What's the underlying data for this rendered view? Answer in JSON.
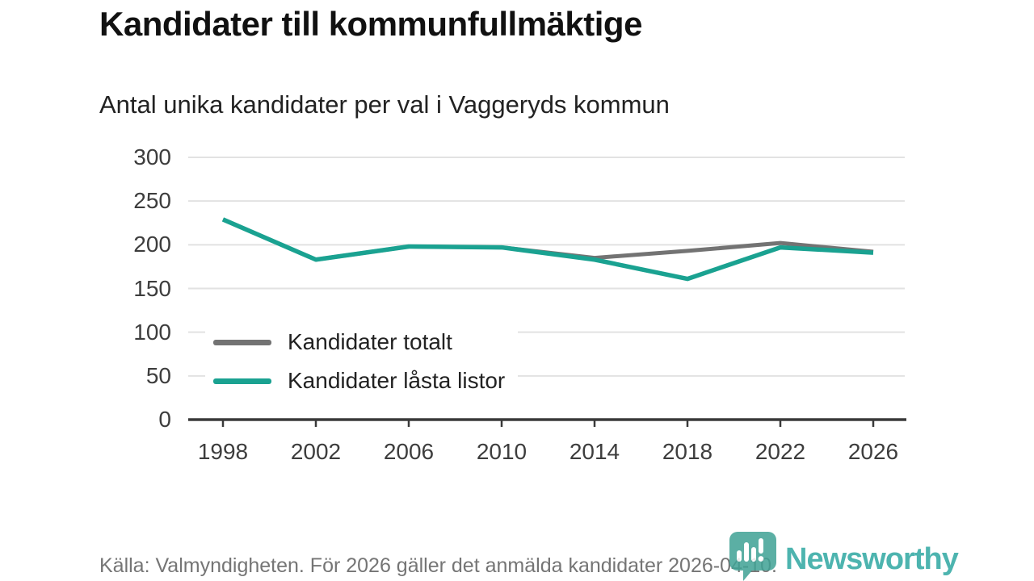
{
  "header": {
    "title": "Kandidater till kommunfullmäktige",
    "subtitle": "Antal unika kandidater per val i Vaggeryds kommun"
  },
  "chart_data": {
    "type": "line",
    "title": "Kandidater till kommunfullmäktige",
    "subtitle": "Antal unika kandidater per val i Vaggeryds kommun",
    "categories": [
      "1998",
      "2002",
      "2006",
      "2010",
      "2014",
      "2018",
      "2022",
      "2026"
    ],
    "series": [
      {
        "name": "Kandidater totalt",
        "color": "#737373",
        "values": [
          229,
          183,
          198,
          197,
          185,
          193,
          202,
          192
        ]
      },
      {
        "name": "Kandidater låsta listor",
        "color": "#1aa291",
        "values": [
          229,
          183,
          198,
          197,
          183,
          161,
          197,
          191
        ]
      }
    ],
    "xlabel": "",
    "ylabel": "",
    "ylim": [
      0,
      300
    ],
    "yticks_top_to_bottom": [
      300,
      250,
      200,
      150,
      100,
      50,
      0
    ],
    "grid": "horizontal-light-gray",
    "legend_position": "inside-bottom-left"
  },
  "footer": {
    "source_text": "Källa: Valmyndigheten. För 2026 gäller det anmälda kandidater 2026-04-10."
  },
  "logo": {
    "wordmark": "Newsworthy",
    "icon": "newsworthy-pin-barchart-icon",
    "brand_color": "#2ea7a2",
    "icon_color": "#3fa295"
  },
  "colors": {
    "gridline": "#e2e2e2",
    "axis": "#3a3a3a",
    "tick_label": "#3d3d3d",
    "title_text": "#111111",
    "subtitle_text": "#222222",
    "footer_text": "#757575"
  }
}
